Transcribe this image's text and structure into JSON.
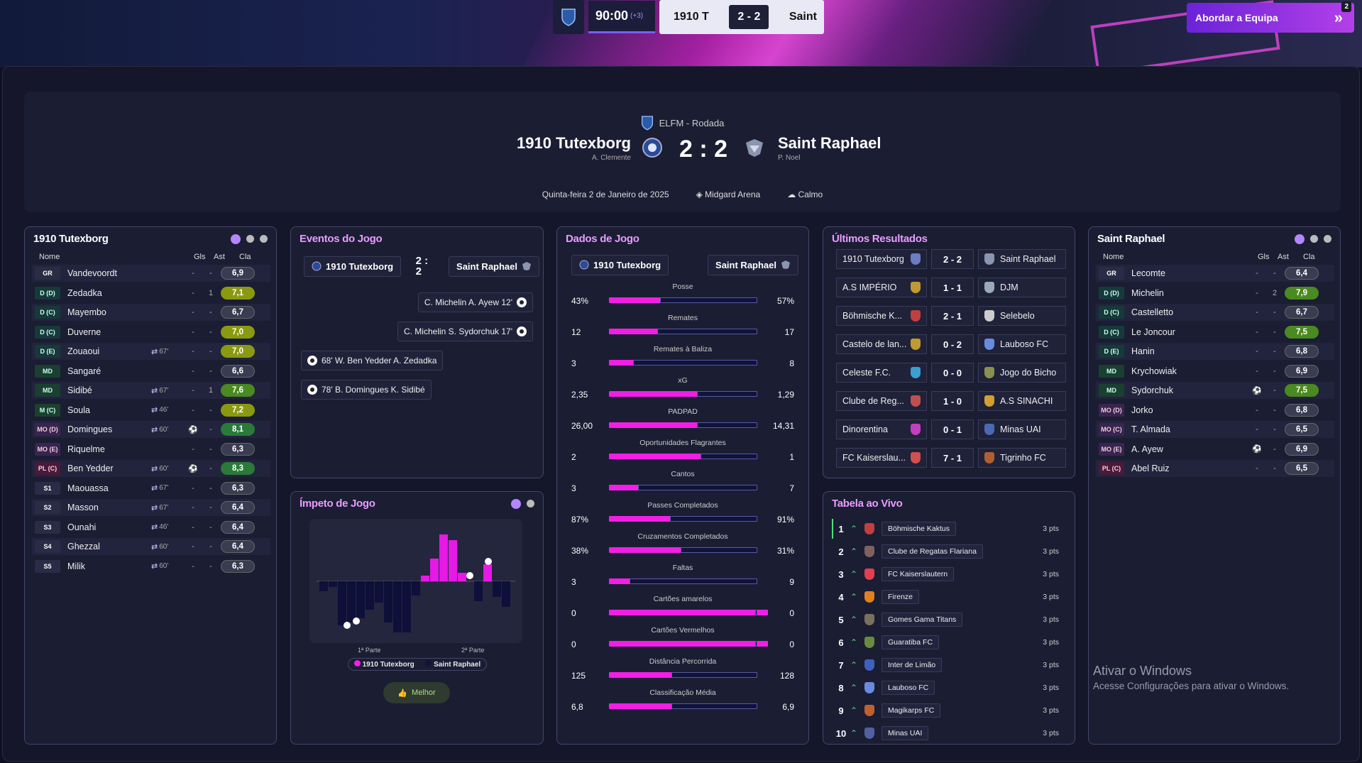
{
  "top": {
    "clock": "90:00",
    "added_time": "(+3)",
    "home_short": "1910 T",
    "score": "2 - 2",
    "away_short": "Saint",
    "approach_label": "Abordar a Equipa",
    "approach_count": "2"
  },
  "header": {
    "competition": "ELFM - Rodada",
    "home_team": "1910 Tutexborg",
    "home_coach": "A. Clemente",
    "score": "2 : 2",
    "away_team": "Saint Raphael",
    "away_coach": "P. Noel",
    "date": "Quinta-feira 2 de Janeiro de 2025",
    "stadium": "Midgard Arena",
    "weather": "Calmo"
  },
  "home_lineup": {
    "title": "1910 Tutexborg",
    "cols": {
      "name": "Nome",
      "goals": "Gls",
      "assists": "Ast",
      "rating": "Cla"
    },
    "players": [
      {
        "pos": "GR",
        "name": "Vandevoordt",
        "ev": "",
        "gls": "-",
        "ast": "-",
        "rating": "6,9"
      },
      {
        "pos": "D (D)",
        "name": "Zedadka",
        "ev": "",
        "gls": "-",
        "ast": "1",
        "rating": "7,1"
      },
      {
        "pos": "D (C)",
        "name": "Mayembo",
        "ev": "",
        "gls": "-",
        "ast": "-",
        "rating": "6,7"
      },
      {
        "pos": "D (C)",
        "name": "Duverne",
        "ev": "",
        "gls": "-",
        "ast": "-",
        "rating": "7,0"
      },
      {
        "pos": "D (E)",
        "name": "Zouaoui",
        "ev": "67'",
        "gls": "-",
        "ast": "-",
        "rating": "7,0"
      },
      {
        "pos": "MD",
        "name": "Sangaré",
        "ev": "",
        "gls": "-",
        "ast": "-",
        "rating": "6,6"
      },
      {
        "pos": "MD",
        "name": "Sidibé",
        "ev": "67'",
        "gls": "-",
        "ast": "1",
        "rating": "7,6"
      },
      {
        "pos": "M (C)",
        "name": "Soula",
        "ev": "46'",
        "gls": "-",
        "ast": "-",
        "rating": "7,2"
      },
      {
        "pos": "MO (D)",
        "name": "Domingues",
        "ev": "60'",
        "gls": "1",
        "ast": "-",
        "rating": "8,1"
      },
      {
        "pos": "MO (E)",
        "name": "Riquelme",
        "ev": "",
        "gls": "-",
        "ast": "-",
        "rating": "6,3"
      },
      {
        "pos": "PL (C)",
        "name": "Ben Yedder",
        "ev": "60'",
        "gls": "1",
        "ast": "-",
        "rating": "8,3"
      },
      {
        "pos": "S1",
        "name": "Maouassa",
        "ev": "67'",
        "gls": "-",
        "ast": "-",
        "rating": "6,3"
      },
      {
        "pos": "S2",
        "name": "Masson",
        "ev": "67'",
        "gls": "-",
        "ast": "-",
        "rating": "6,4"
      },
      {
        "pos": "S3",
        "name": "Ounahi",
        "ev": "46'",
        "gls": "-",
        "ast": "-",
        "rating": "6,4"
      },
      {
        "pos": "S4",
        "name": "Ghezzal",
        "ev": "60'",
        "gls": "-",
        "ast": "-",
        "rating": "6,4"
      },
      {
        "pos": "S5",
        "name": "Milik",
        "ev": "60'",
        "gls": "-",
        "ast": "-",
        "rating": "6,3"
      }
    ]
  },
  "events": {
    "title": "Eventos do Jogo",
    "home": "1910 Tutexborg",
    "score": "2 : 2",
    "away": "Saint Raphael",
    "items": [
      {
        "text": "C. Michelin  A. Ayew  12'",
        "side": "away"
      },
      {
        "text": "C. Michelin  S. Sydorchuk  17'",
        "side": "away"
      },
      {
        "text": "68'  W. Ben Yedder  A. Zedadka",
        "side": "home"
      },
      {
        "text": "78'  B. Domingues  K. Sidibé",
        "side": "home"
      }
    ]
  },
  "momentum": {
    "title": "Ímpeto de Jogo",
    "half1": "1ª Parte",
    "half2": "2ª Parte",
    "legend_home": "1910 Tutexborg",
    "legend_away": "Saint Raphael",
    "best_label": "Melhor"
  },
  "stats": {
    "title": "Dados de Jogo",
    "home": "1910 Tutexborg",
    "away": "Saint Raphael",
    "rows": [
      {
        "label": "Posse",
        "h": "43%",
        "a": "57%",
        "hv": 43,
        "av": 57
      },
      {
        "label": "Remates",
        "h": "12",
        "a": "17",
        "hv": 12,
        "av": 17
      },
      {
        "label": "Remates à Baliza",
        "h": "3",
        "a": "8",
        "hv": 3,
        "av": 8
      },
      {
        "label": "xG",
        "h": "2,35",
        "a": "1,29",
        "hv": 2.35,
        "av": 1.29
      },
      {
        "label": "PADPAD",
        "h": "26,00",
        "a": "14,31",
        "hv": 26.0,
        "av": 14.31
      },
      {
        "label": "Oportunidades Flagrantes",
        "h": "2",
        "a": "1",
        "hv": 2,
        "av": 1
      },
      {
        "label": "Cantos",
        "h": "3",
        "a": "7",
        "hv": 3,
        "av": 7
      },
      {
        "label": "Passes Completados",
        "h": "87%",
        "a": "91%",
        "hv": 87,
        "av": 91
      },
      {
        "label": "Cruzamentos Completados",
        "h": "38%",
        "a": "31%",
        "hv": 38,
        "av": 31
      },
      {
        "label": "Faltas",
        "h": "3",
        "a": "9",
        "hv": 3,
        "av": 9
      },
      {
        "label": "Cartões amarelos",
        "h": "0",
        "a": "0",
        "hv": 0,
        "av": 0
      },
      {
        "label": "Cartões Vermelhos",
        "h": "0",
        "a": "0",
        "hv": 0,
        "av": 0
      },
      {
        "label": "Distância Percorrida",
        "h": "125",
        "a": "128",
        "hv": 125,
        "av": 128
      },
      {
        "label": "Classificação Média",
        "h": "6,8",
        "a": "6,9",
        "hv": 6.8,
        "av": 6.9
      }
    ]
  },
  "results": {
    "title": "Últimos Resultados",
    "rows": [
      {
        "home": "1910 Tutexborg",
        "score": "2 - 2",
        "away": "Saint Raphael"
      },
      {
        "home": "A.S IMPÉRIO",
        "score": "1 - 1",
        "away": "DJM"
      },
      {
        "home": "Böhmische K...",
        "score": "2 - 1",
        "away": "Selebelo"
      },
      {
        "home": "Castelo de lan...",
        "score": "0 - 2",
        "away": "Lauboso FC"
      },
      {
        "home": "Celeste F.C.",
        "score": "0 - 0",
        "away": "Jogo do Bicho"
      },
      {
        "home": "Clube de Reg...",
        "score": "1 - 0",
        "away": "A.S SINACHI"
      },
      {
        "home": "Dinorentina",
        "score": "0 - 1",
        "away": "Minas UAI"
      },
      {
        "home": "FC Kaiserslau...",
        "score": "7 - 1",
        "away": "Tigrinho FC"
      }
    ]
  },
  "table": {
    "title": "Tabela ao Vivo",
    "rows": [
      {
        "pos": "1",
        "team": "Böhmische Kaktus",
        "pts": "3 pts"
      },
      {
        "pos": "2",
        "team": "Clube de Regatas Flariana",
        "pts": "3 pts"
      },
      {
        "pos": "3",
        "team": "FC Kaiserslautern",
        "pts": "3 pts"
      },
      {
        "pos": "4",
        "team": "Firenze",
        "pts": "3 pts"
      },
      {
        "pos": "5",
        "team": "Gomes Gama Titans",
        "pts": "3 pts"
      },
      {
        "pos": "6",
        "team": "Guaratiba FC",
        "pts": "3 pts"
      },
      {
        "pos": "7",
        "team": "Inter de Limão",
        "pts": "3 pts"
      },
      {
        "pos": "8",
        "team": "Lauboso FC",
        "pts": "3 pts"
      },
      {
        "pos": "9",
        "team": "Magikarps FC",
        "pts": "3 pts"
      },
      {
        "pos": "10",
        "team": "Minas UAI",
        "pts": "3 pts"
      }
    ]
  },
  "away_lineup": {
    "title": "Saint Raphael",
    "cols": {
      "name": "Nome",
      "goals": "Gls",
      "assists": "Ast",
      "rating": "Cla"
    },
    "players": [
      {
        "pos": "GR",
        "name": "Lecomte",
        "ev": "",
        "gls": "-",
        "ast": "-",
        "rating": "6,4"
      },
      {
        "pos": "D (D)",
        "name": "Michelin",
        "ev": "",
        "gls": "-",
        "ast": "2",
        "rating": "7,9"
      },
      {
        "pos": "D (C)",
        "name": "Castelletto",
        "ev": "",
        "gls": "-",
        "ast": "-",
        "rating": "6,7"
      },
      {
        "pos": "D (C)",
        "name": "Le Joncour",
        "ev": "",
        "gls": "-",
        "ast": "-",
        "rating": "7,5"
      },
      {
        "pos": "D (E)",
        "name": "Hanin",
        "ev": "",
        "gls": "-",
        "ast": "-",
        "rating": "6,8"
      },
      {
        "pos": "MD",
        "name": "Krychowiak",
        "ev": "",
        "gls": "-",
        "ast": "-",
        "rating": "6,9"
      },
      {
        "pos": "MD",
        "name": "Sydorchuk",
        "ev": "",
        "gls": "1",
        "ast": "-",
        "rating": "7,5"
      },
      {
        "pos": "MO (D)",
        "name": "Jorko",
        "ev": "",
        "gls": "-",
        "ast": "-",
        "rating": "6,8"
      },
      {
        "pos": "MO (C)",
        "name": "T. Almada",
        "ev": "",
        "gls": "-",
        "ast": "-",
        "rating": "6,5"
      },
      {
        "pos": "MO (E)",
        "name": "A. Ayew",
        "ev": "",
        "gls": "1",
        "ast": "-",
        "rating": "6,9"
      },
      {
        "pos": "PL (C)",
        "name": "Abel Ruiz",
        "ev": "",
        "gls": "-",
        "ast": "-",
        "rating": "6,5"
      }
    ]
  },
  "watermark": {
    "line1": "Ativar o Windows",
    "line2": "Acesse Configurações para ativar o Windows."
  },
  "colors": {
    "home": "#f21ee6",
    "away": "#10133a",
    "accent": "#b486ff"
  }
}
